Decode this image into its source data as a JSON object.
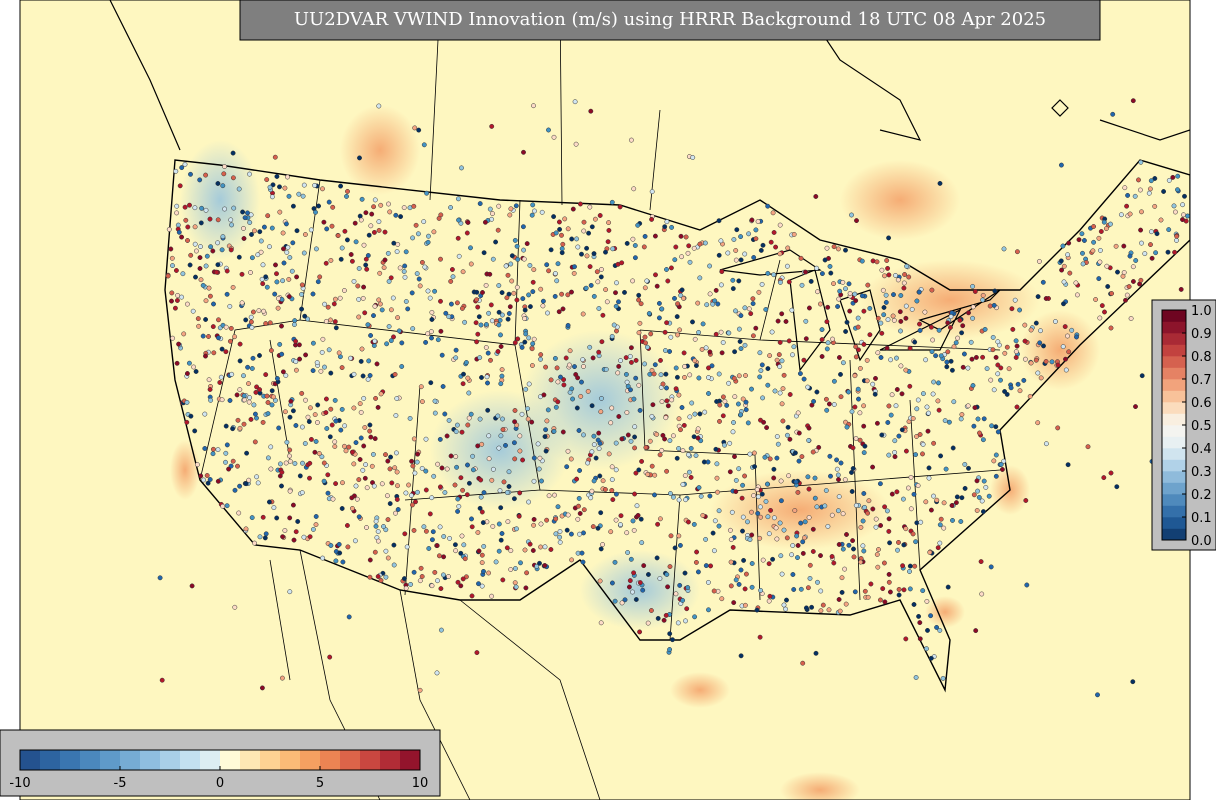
{
  "header": {
    "title": "UU2DVAR VWIND Innovation (m/s) using HRRR Background 18 UTC 08 Apr 2025"
  },
  "colorbars": [
    {
      "orientation": "horizontal",
      "lim": [
        -10,
        10
      ],
      "ticks": [
        -10,
        -5,
        0,
        5,
        10
      ],
      "colors": [
        "#24528f",
        "#2d64a0",
        "#3a76b0",
        "#4b88bd",
        "#5f9ac9",
        "#76acd4",
        "#8fbedf",
        "#a9cfe8",
        "#c3e0f0",
        "#ddeef3",
        "#fffbd8",
        "#fee8b4",
        "#fdd293",
        "#fbbb77",
        "#f5a061",
        "#ec8453",
        "#dd6449",
        "#c94740",
        "#b12c36",
        "#93142c"
      ]
    },
    {
      "orientation": "vertical",
      "lim": [
        0,
        1
      ],
      "ticks": [
        {
          "value": 0,
          "label": "0.0"
        },
        {
          "value": 0.1,
          "label": "0.1"
        },
        {
          "value": 0.2,
          "label": "0.2"
        },
        {
          "value": 0.3,
          "label": "0.3"
        },
        {
          "value": 0.4,
          "label": "0.4"
        },
        {
          "value": 0.5,
          "label": "0.5"
        },
        {
          "value": 0.6,
          "label": "0.6"
        },
        {
          "value": 0.7,
          "label": "0.7"
        },
        {
          "value": 0.8,
          "label": "0.8"
        },
        {
          "value": 0.9,
          "label": "0.9"
        },
        {
          "value": 1,
          "label": "1.0"
        }
      ],
      "colors": [
        "#123f73",
        "#1f5894",
        "#3470aa",
        "#4f8abc",
        "#6ea3cc",
        "#8fbbdb",
        "#b1d2e8",
        "#d0e4ef",
        "#e8f0f2",
        "#f4f4f0",
        "#f9efe0",
        "#fbdcbd",
        "#f8c29a",
        "#f2a37c",
        "#e58264",
        "#d5614f",
        "#c2423f",
        "#a92a35",
        "#8c142b",
        "#6e0521"
      ]
    }
  ]
}
